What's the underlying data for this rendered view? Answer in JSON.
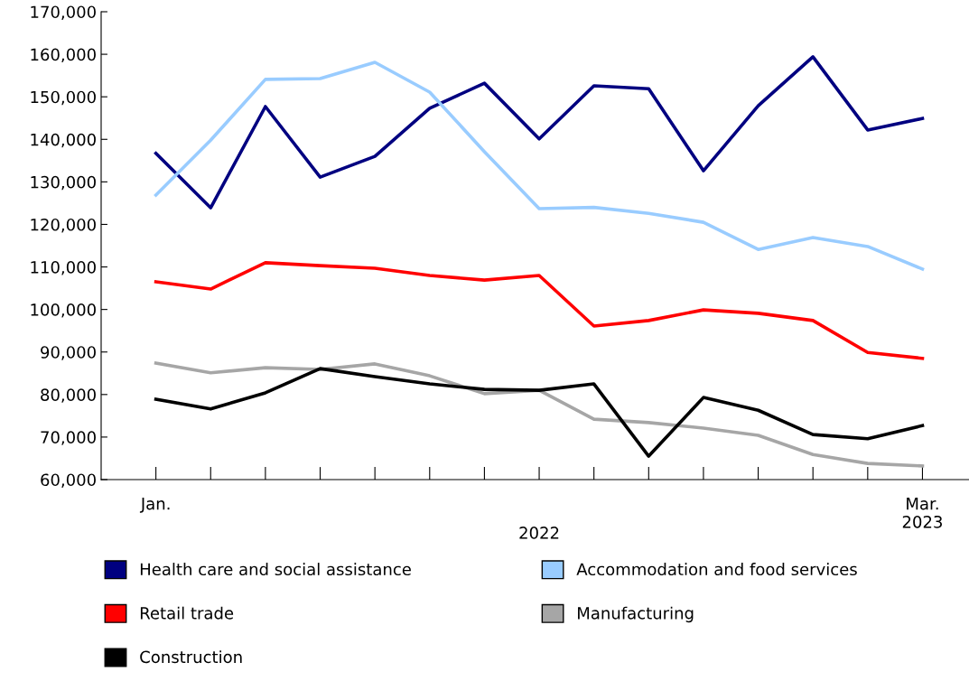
{
  "chart_data": {
    "type": "line",
    "categories": [
      "Jan.",
      null,
      null,
      null,
      null,
      null,
      null,
      null,
      null,
      null,
      null,
      null,
      null,
      null,
      "Mar.\n2023"
    ],
    "annotations": [
      "2022"
    ],
    "ylim": [
      60000,
      170000
    ],
    "yticks": [
      {
        "value": 60000,
        "label": "60,000"
      },
      {
        "value": 70000,
        "label": "70,000"
      },
      {
        "value": 80000,
        "label": "80,000"
      },
      {
        "value": 90000,
        "label": "90,000"
      },
      {
        "value": 100000,
        "label": "100,000"
      },
      {
        "value": 110000,
        "label": "110,000"
      },
      {
        "value": 120000,
        "label": "120,000"
      },
      {
        "value": 130000,
        "label": "130,000"
      },
      {
        "value": 140000,
        "label": "140,000"
      },
      {
        "value": 150000,
        "label": "150,000"
      },
      {
        "value": 160000,
        "label": "160,000"
      },
      {
        "value": 170000,
        "label": "170,000"
      }
    ],
    "grid": false,
    "legend": "bottom",
    "marker": "none",
    "line_style": "solid",
    "series": [
      {
        "name": "Health care and social assistance",
        "color": "#000080",
        "values": [
          136700,
          123900,
          147700,
          131100,
          136000,
          147300,
          153200,
          140100,
          152600,
          151900,
          132600,
          147900,
          159400,
          142200,
          144900
        ]
      },
      {
        "name": "Accommodation and food services",
        "color": "#99ccff",
        "values": [
          126900,
          139800,
          154100,
          154300,
          158100,
          151100,
          137100,
          123700,
          124000,
          122600,
          120500,
          114100,
          116900,
          114800,
          109500
        ]
      },
      {
        "name": "Retail trade",
        "color": "#ff0000",
        "values": [
          106500,
          104800,
          111000,
          110300,
          109700,
          108000,
          106900,
          108000,
          96100,
          97400,
          99900,
          99100,
          97400,
          89900,
          88500
        ]
      },
      {
        "name": "Manufacturing",
        "color": "#a6a6a6",
        "values": [
          87400,
          85100,
          86300,
          85900,
          87200,
          84400,
          80200,
          81000,
          74200,
          73400,
          72100,
          70400,
          65900,
          63800,
          63200
        ]
      },
      {
        "name": "Construction",
        "color": "#000000",
        "values": [
          78900,
          76600,
          80400,
          86100,
          84200,
          82500,
          81200,
          81000,
          82500,
          65500,
          79300,
          76300,
          70600,
          69600,
          72700
        ]
      }
    ]
  }
}
